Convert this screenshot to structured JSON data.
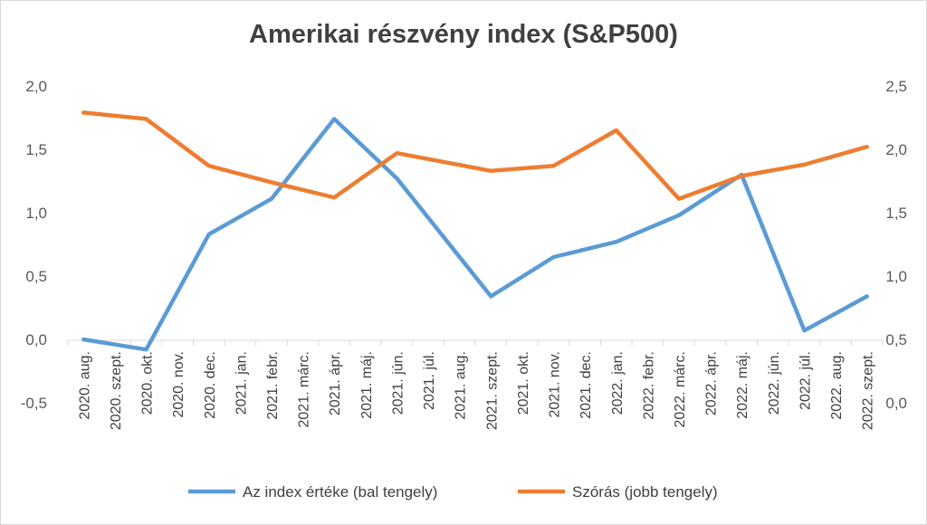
{
  "chart_data": {
    "type": "line",
    "title": "Amerikai részvény index (S&P500)",
    "categories": [
      "2020. aug.",
      "2020. szept.",
      "2020. okt.",
      "2020. nov.",
      "2020. dec.",
      "2021. jan.",
      "2021. febr.",
      "2021. márc.",
      "2021. ápr.",
      "2021. máj.",
      "2021. jún.",
      "2021. júl.",
      "2021. aug.",
      "2021. szept.",
      "2021. okt.",
      "2021. nov.",
      "2021. dec.",
      "2022. jan.",
      "2022. febr.",
      "2022. márc.",
      "2022. ápr.",
      "2022. máj.",
      "2022. jún.",
      "2022. júl.",
      "2022. aug.",
      "2022. szept."
    ],
    "y_left": {
      "ticks": [
        "2,0",
        "1,5",
        "1,0",
        "0,5",
        "0,0",
        "-0,5"
      ],
      "range": [
        -0.5,
        2.0
      ]
    },
    "y_right": {
      "ticks": [
        "2,5",
        "2,0",
        "1,5",
        "1,0",
        "0,5",
        "0,0"
      ],
      "range": [
        0.0,
        2.5
      ]
    },
    "series": [
      {
        "name": "Az index értéke (bal tengely)",
        "axis": "left",
        "color": "#5b9bd5",
        "points": [
          [
            0,
            0.0
          ],
          [
            2,
            -0.08
          ],
          [
            4,
            0.83
          ],
          [
            6,
            1.11
          ],
          [
            8,
            1.74
          ],
          [
            10,
            1.27
          ],
          [
            13,
            0.34
          ],
          [
            15,
            0.65
          ],
          [
            17,
            0.77
          ],
          [
            19,
            0.98
          ],
          [
            21,
            1.3
          ],
          [
            23,
            0.07
          ],
          [
            25,
            0.34
          ]
        ]
      },
      {
        "name": "Szórás (jobb tengely)",
        "axis": "right",
        "color": "#ed7d31",
        "points": [
          [
            0,
            2.29
          ],
          [
            2,
            2.24
          ],
          [
            4,
            1.87
          ],
          [
            6,
            1.74
          ],
          [
            8,
            1.62
          ],
          [
            10,
            1.97
          ],
          [
            13,
            1.83
          ],
          [
            15,
            1.87
          ],
          [
            17,
            2.15
          ],
          [
            19,
            1.61
          ],
          [
            21,
            1.79
          ],
          [
            23,
            1.88
          ],
          [
            25,
            2.02
          ]
        ]
      }
    ],
    "legend_position": "bottom",
    "grid": false
  }
}
